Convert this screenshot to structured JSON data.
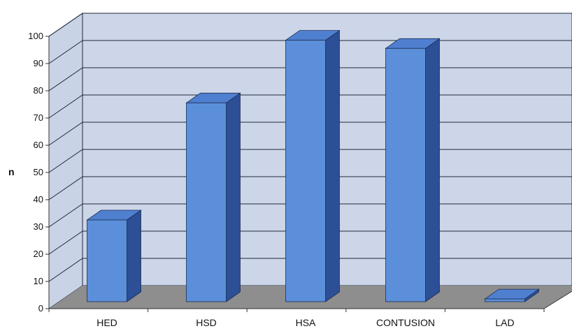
{
  "chart_data": {
    "type": "bar",
    "style": "3d-column",
    "categories": [
      "HED",
      "HSD",
      "HSA",
      "CONTUSION",
      "LAD"
    ],
    "values": [
      30,
      73,
      96,
      93,
      1
    ],
    "title": "",
    "xlabel": "",
    "ylabel": "n",
    "ylim": [
      0,
      100
    ],
    "yticks": [
      0,
      10,
      20,
      30,
      40,
      50,
      60,
      70,
      80,
      90,
      100
    ],
    "grid": true,
    "legend": "none",
    "colors": {
      "bar_front": "#5b8fd9",
      "bar_side": "#2c4f96",
      "bar_top": "#4f7fcf",
      "back_wall": "#ccd6e8",
      "side_wall": "#c9d3e6",
      "floor": "#8e8e8e",
      "grid": "#1f2a3a"
    }
  }
}
